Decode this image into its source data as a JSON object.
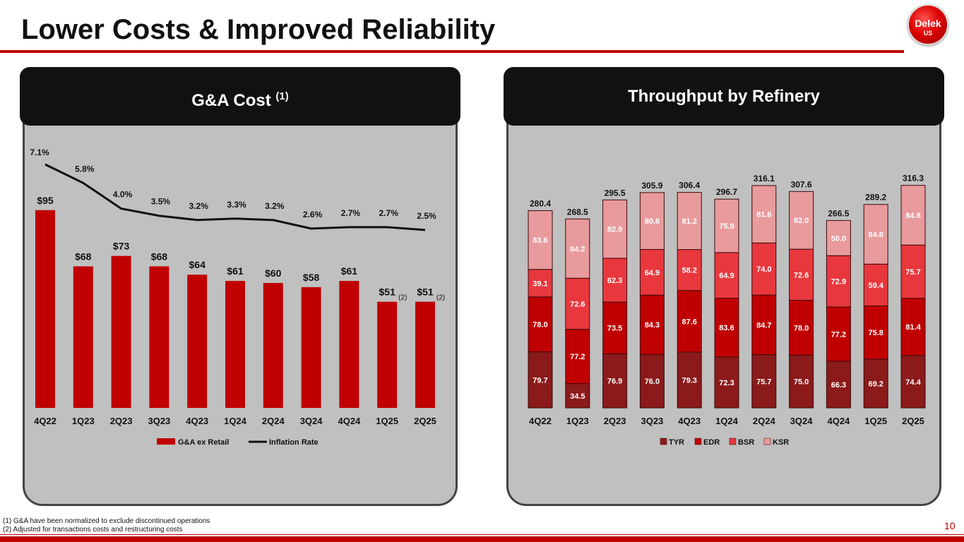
{
  "title": "Lower Costs & Improved Reliability",
  "logo": {
    "text": "Delek",
    "sub": "US"
  },
  "footnotes": [
    "(1) G&A have been normalized to exclude discontinued operations",
    "(2) Adjusted for transactions costs and restructuring costs"
  ],
  "page_number": "10",
  "panels": {
    "left": {
      "title": "G&A Cost ",
      "sup": "(1)"
    },
    "right": {
      "title": "Throughput by Refinery"
    }
  },
  "colors": {
    "ga": "#c00000",
    "tyr": "#8b1a1a",
    "edr": "#c00000",
    "bsr": "#e8383d",
    "ksr": "#e99a9c"
  },
  "chart_data": [
    {
      "type": "bar",
      "title": "G&A Cost (1)",
      "categories": [
        "4Q22",
        "1Q23",
        "2Q23",
        "3Q23",
        "4Q23",
        "1Q24",
        "2Q24",
        "3Q24",
        "4Q24",
        "1Q25",
        "2Q25"
      ],
      "series": [
        {
          "name": "G&A ex Retail",
          "type": "bar",
          "values": [
            95,
            68,
            73,
            68,
            64,
            61,
            60,
            58,
            61,
            51,
            51
          ],
          "labels": [
            "$95",
            "$68",
            "$73",
            "$68",
            "$64",
            "$61",
            "$60",
            "$58",
            "$61",
            "$51",
            "$51"
          ],
          "notes": [
            "",
            "",
            "",
            "",
            "",
            "",
            "",
            "",
            "",
            "(2)",
            "(2)"
          ]
        },
        {
          "name": "Inflation Rate",
          "type": "line",
          "values": [
            7.1,
            5.8,
            4.0,
            3.5,
            3.2,
            3.3,
            3.2,
            2.6,
            2.7,
            2.7,
            2.5
          ],
          "labels": [
            "7.1%",
            "5.8%",
            "4.0%",
            "3.5%",
            "3.2%",
            "3.3%",
            "3.2%",
            "2.6%",
            "2.7%",
            "2.7%",
            "2.5%"
          ]
        }
      ],
      "legend": "bottom"
    },
    {
      "type": "bar",
      "stacked": true,
      "title": "Throughput by Refinery",
      "categories": [
        "4Q22",
        "1Q23",
        "2Q23",
        "3Q23",
        "4Q23",
        "1Q24",
        "2Q24",
        "3Q24",
        "4Q24",
        "1Q25",
        "2Q25"
      ],
      "series": [
        {
          "name": "TYR",
          "values": [
            79.7,
            34.5,
            76.9,
            76.0,
            79.3,
            72.3,
            75.7,
            75.0,
            66.3,
            69.2,
            74.4
          ]
        },
        {
          "name": "EDR",
          "values": [
            78.0,
            77.2,
            73.5,
            84.3,
            87.6,
            83.6,
            84.7,
            78.0,
            77.2,
            75.8,
            81.4
          ]
        },
        {
          "name": "BSR",
          "values": [
            39.1,
            72.6,
            62.3,
            64.9,
            58.2,
            64.9,
            74.0,
            72.6,
            72.9,
            59.4,
            75.7
          ]
        },
        {
          "name": "KSR",
          "values": [
            83.6,
            84.2,
            82.9,
            80.8,
            81.2,
            75.9,
            81.6,
            82.0,
            50.0,
            84.8,
            84.8
          ]
        }
      ],
      "totals": [
        "280.4",
        "268.5",
        "295.5",
        "305.9",
        "306.4",
        "296.7",
        "316.1",
        "307.6",
        "266.5",
        "289.2",
        "316.3"
      ],
      "legend": "bottom"
    }
  ]
}
